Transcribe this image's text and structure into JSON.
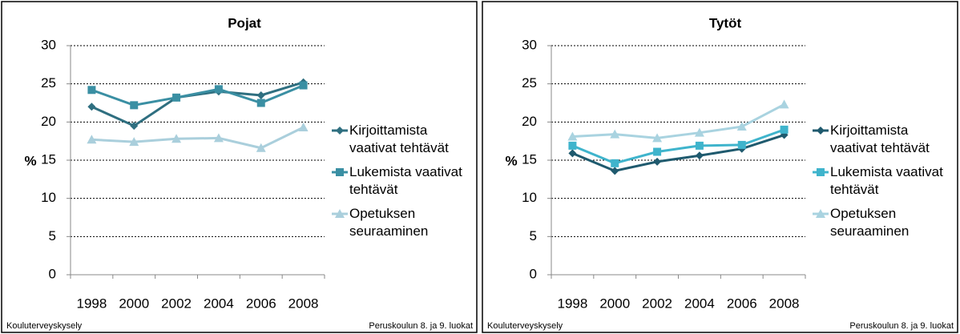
{
  "chart_data": [
    {
      "type": "line",
      "title": "Pojat",
      "ylabel": "%",
      "source": "Kouluterveyskysely",
      "note": "Peruskoulun 8. ja 9. luokat",
      "categories": [
        "1998",
        "2000",
        "2002",
        "2004",
        "2006",
        "2008"
      ],
      "ylim": [
        0,
        30
      ],
      "yticks": [
        0,
        5,
        10,
        15,
        20,
        25,
        30
      ],
      "grid": true,
      "legend": "right",
      "series": [
        {
          "name": "Kirjoittamista vaativat tehtävät",
          "color": "#2f6f80",
          "marker": "diamond",
          "values": [
            22.0,
            19.5,
            23.2,
            24.0,
            23.5,
            25.2
          ]
        },
        {
          "name": "Lukemista vaativat tehtävät",
          "color": "#3a8fa3",
          "marker": "square",
          "values": [
            24.2,
            22.2,
            23.2,
            24.3,
            22.5,
            24.8
          ]
        },
        {
          "name": "Opetuksen seuraaminen",
          "color": "#aacfdc",
          "marker": "triangle",
          "values": [
            17.7,
            17.4,
            17.8,
            17.9,
            16.6,
            19.3
          ]
        }
      ]
    },
    {
      "type": "line",
      "title": "Tytöt",
      "ylabel": "%",
      "source": "Kouluterveyskysely",
      "note": "Peruskoulun 8. ja 9. luokat",
      "categories": [
        "1998",
        "2000",
        "2002",
        "2004",
        "2006",
        "2008"
      ],
      "ylim": [
        0,
        30
      ],
      "yticks": [
        0,
        5,
        10,
        15,
        20,
        25,
        30
      ],
      "grid": true,
      "legend": "right",
      "series": [
        {
          "name": "Kirjoittamista vaativat tehtävät",
          "color": "#1f5a6e",
          "marker": "diamond",
          "values": [
            15.9,
            13.6,
            14.8,
            15.6,
            16.5,
            18.3
          ]
        },
        {
          "name": "Lukemista vaativat tehtävät",
          "color": "#3fb4cc",
          "marker": "square",
          "values": [
            16.9,
            14.6,
            16.1,
            16.9,
            17.0,
            19.0
          ]
        },
        {
          "name": "Opetuksen seuraaminen",
          "color": "#a9d3e0",
          "marker": "triangle",
          "values": [
            18.1,
            18.4,
            17.9,
            18.6,
            19.4,
            22.3
          ]
        }
      ]
    }
  ]
}
